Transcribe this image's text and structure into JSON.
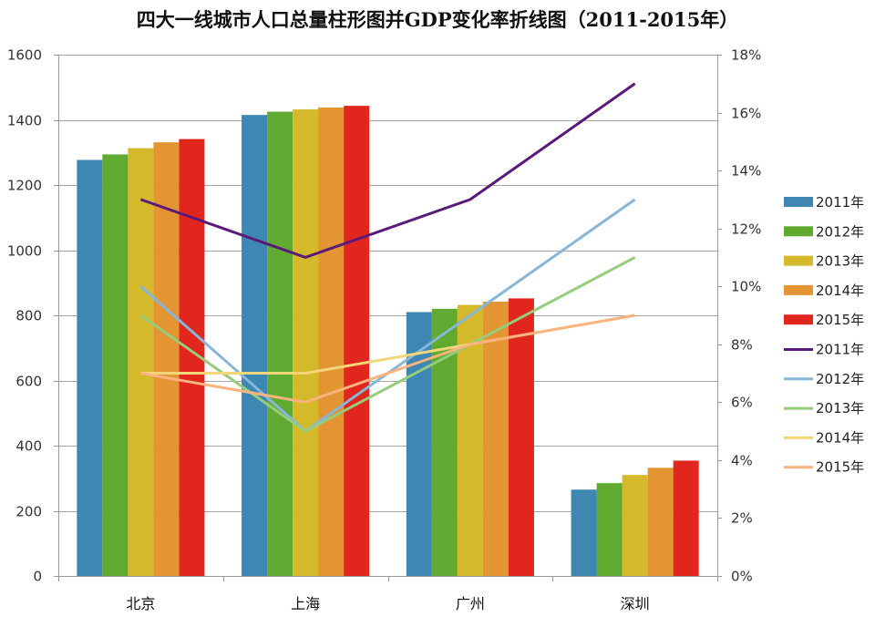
{
  "chart_data": {
    "type": "bar",
    "title": "四大一线城市人口总量柱形图并GDP变化率折线图（2011-2015年）",
    "categories": [
      "北京",
      "上海",
      "广州",
      "深圳"
    ],
    "bar_axis": {
      "ylim": [
        0,
        1600
      ],
      "ticks": [
        0,
        200,
        400,
        600,
        800,
        1000,
        1200,
        1400,
        1600
      ],
      "tick_labels": [
        "0",
        "200",
        "400",
        "600",
        "800",
        "1000",
        "1200",
        "1400",
        "1600"
      ],
      "grid": true
    },
    "line_axis": {
      "ylim": [
        0,
        18
      ],
      "ticks": [
        0,
        2,
        4,
        6,
        8,
        10,
        12,
        14,
        16,
        18
      ],
      "tick_labels": [
        "0%",
        "2%",
        "4%",
        "6%",
        "8%",
        "10%",
        "12%",
        "14%",
        "16%",
        "18%"
      ]
    },
    "bar_series": [
      {
        "name": "2011年",
        "color": "#3f87b3",
        "values": [
          1277,
          1415,
          810,
          265
        ]
      },
      {
        "name": "2012年",
        "color": "#61aa31",
        "values": [
          1294,
          1425,
          820,
          285
        ]
      },
      {
        "name": "2013年",
        "color": "#d4b92a",
        "values": [
          1313,
          1432,
          832,
          310
        ]
      },
      {
        "name": "2014年",
        "color": "#e39433",
        "values": [
          1331,
          1438,
          842,
          332
        ]
      },
      {
        "name": "2015年",
        "color": "#e1261d",
        "values": [
          1341,
          1443,
          852,
          354
        ]
      }
    ],
    "line_series": [
      {
        "name": "2011年",
        "color": "#5a1a7a",
        "values": [
          13,
          11,
          13,
          17
        ]
      },
      {
        "name": "2012年",
        "color": "#86b6d8",
        "values": [
          10,
          5,
          9,
          13
        ]
      },
      {
        "name": "2013年",
        "color": "#95cd7c",
        "values": [
          9,
          5,
          8,
          11
        ]
      },
      {
        "name": "2014年",
        "color": "#f3d67a",
        "values": [
          7,
          7,
          8,
          9
        ]
      },
      {
        "name": "2015年",
        "color": "#f9b37f",
        "values": [
          7,
          6,
          8,
          9
        ]
      }
    ],
    "legend_position": "right"
  }
}
